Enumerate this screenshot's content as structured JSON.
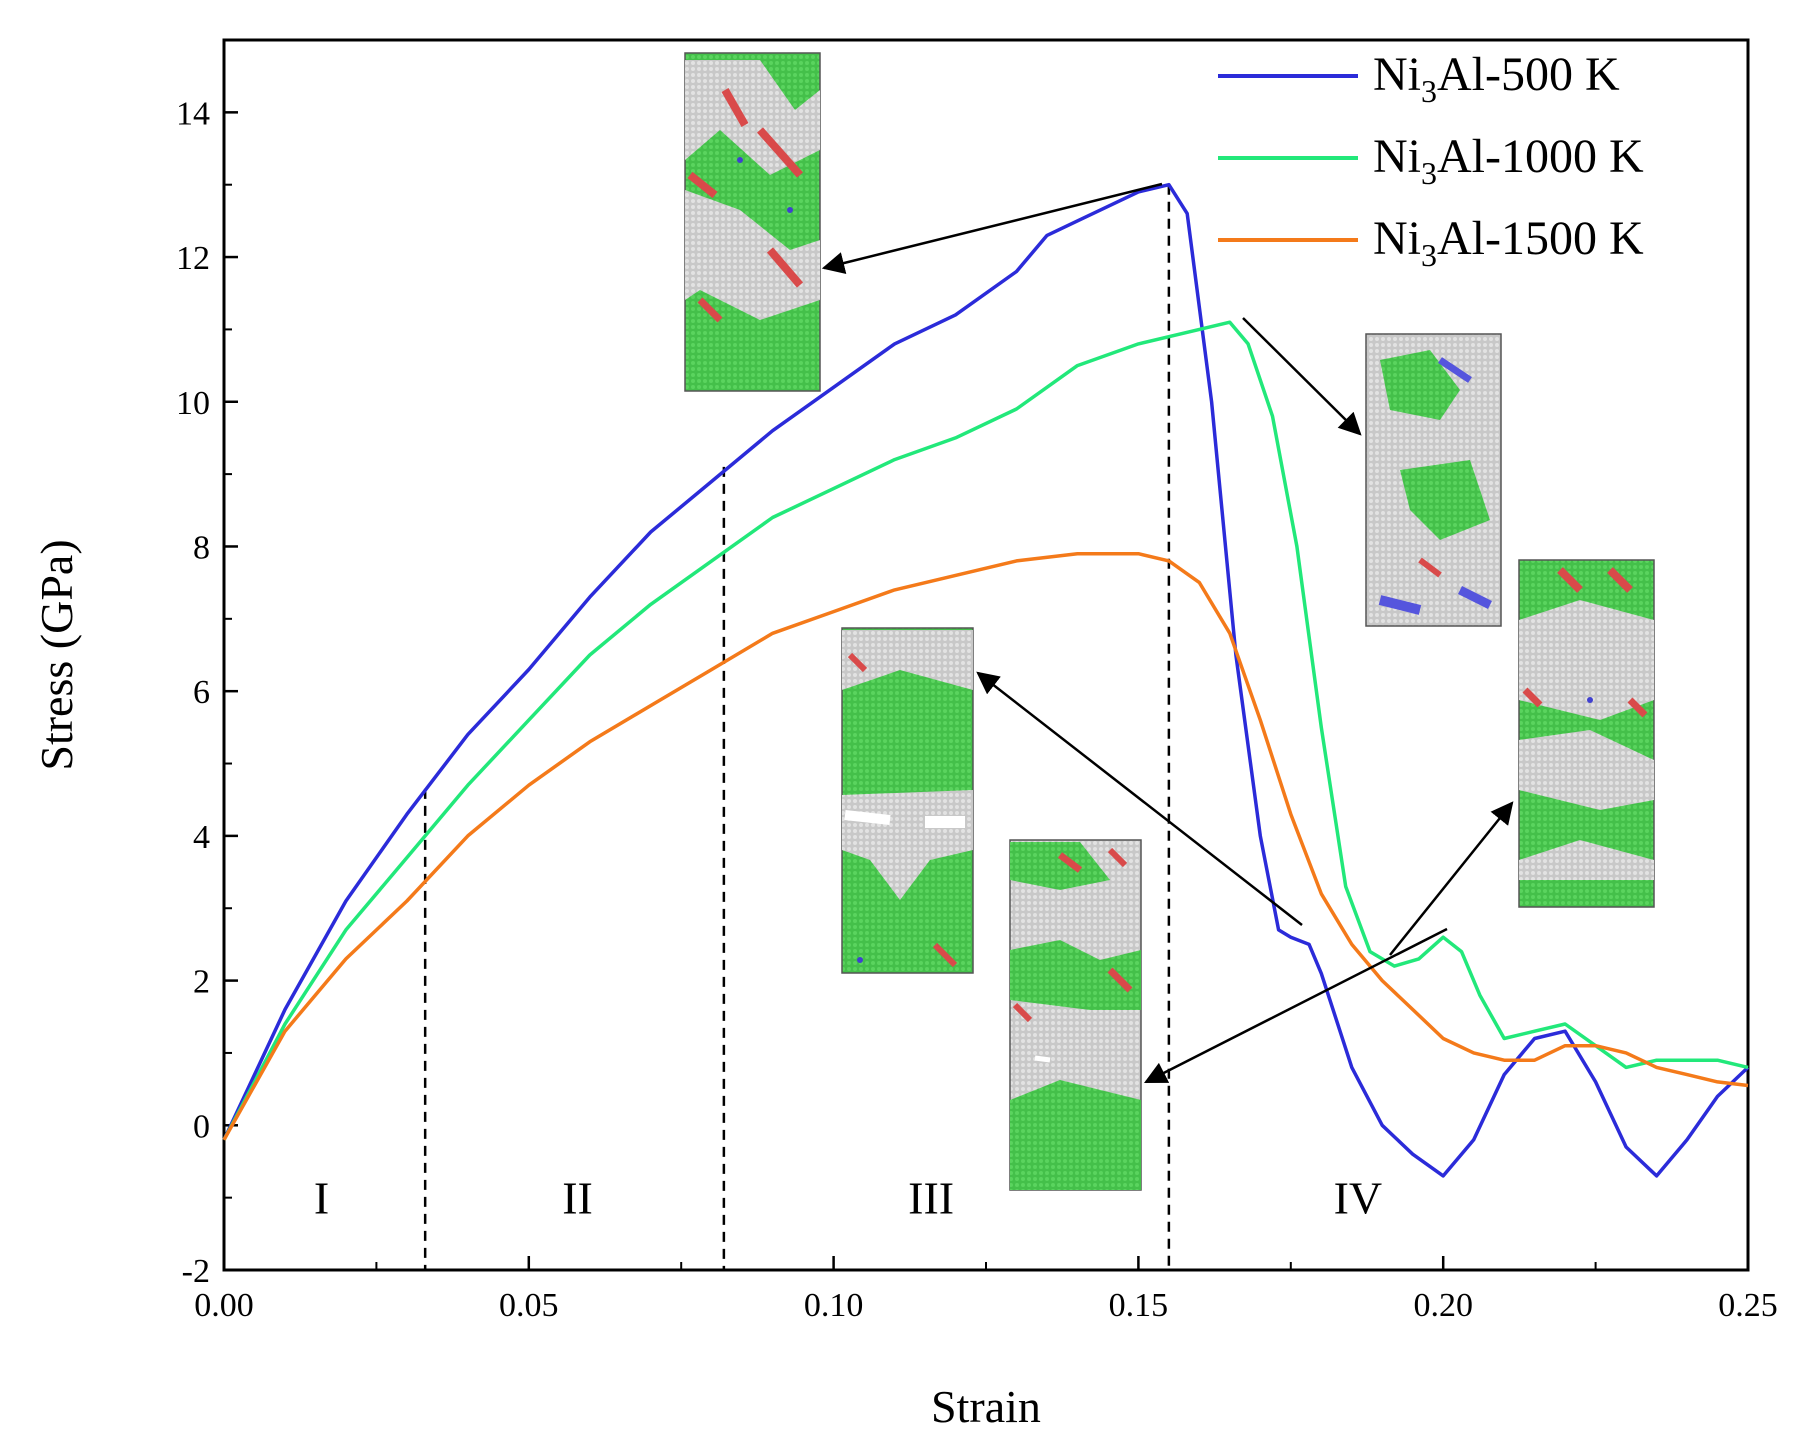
{
  "chart_data": {
    "type": "line",
    "title": "",
    "xlabel": "Strain",
    "ylabel": "Stress (GPa)",
    "xlim": [
      0.0,
      0.25
    ],
    "ylim": [
      -2,
      15
    ],
    "xticks": [
      0.0,
      0.05,
      0.1,
      0.15,
      0.2,
      0.25
    ],
    "xtick_labels": [
      "0.00",
      "0.05",
      "0.10",
      "0.15",
      "0.20",
      "0.25"
    ],
    "yticks": [
      -2,
      0,
      2,
      4,
      6,
      8,
      10,
      12,
      14
    ],
    "ytick_labels": [
      "-2",
      "0",
      "2",
      "4",
      "6",
      "8",
      "10",
      "12",
      "14"
    ],
    "grid": false,
    "legend_position": "top-right",
    "series": [
      {
        "name": "Ni3Al-500 K",
        "label_main": "Ni",
        "label_sub": "3",
        "label_rest": "Al-500 K",
        "color": "#2b2bd9",
        "x": [
          0.0,
          0.01,
          0.02,
          0.03,
          0.04,
          0.05,
          0.06,
          0.07,
          0.08,
          0.09,
          0.1,
          0.11,
          0.12,
          0.13,
          0.135,
          0.14,
          0.145,
          0.15,
          0.155,
          0.158,
          0.162,
          0.166,
          0.17,
          0.173,
          0.175,
          0.178,
          0.18,
          0.185,
          0.19,
          0.195,
          0.2,
          0.205,
          0.21,
          0.215,
          0.22,
          0.225,
          0.23,
          0.235,
          0.24,
          0.245,
          0.25
        ],
        "y": [
          -0.2,
          1.6,
          3.1,
          4.3,
          5.4,
          6.3,
          7.3,
          8.2,
          8.9,
          9.6,
          10.2,
          10.8,
          11.2,
          11.8,
          12.3,
          12.5,
          12.7,
          12.9,
          13.0,
          12.6,
          10.0,
          6.5,
          4.0,
          2.7,
          2.6,
          2.5,
          2.1,
          0.8,
          0.0,
          -0.4,
          -0.7,
          -0.2,
          0.7,
          1.2,
          1.3,
          0.6,
          -0.3,
          -0.7,
          -0.2,
          0.4,
          0.8
        ]
      },
      {
        "name": "Ni3Al-1000 K",
        "label_main": "Ni",
        "label_sub": "3",
        "label_rest": "Al-1000 K",
        "color": "#22e87a",
        "x": [
          0.0,
          0.01,
          0.02,
          0.03,
          0.04,
          0.05,
          0.06,
          0.07,
          0.08,
          0.09,
          0.1,
          0.11,
          0.12,
          0.13,
          0.14,
          0.15,
          0.16,
          0.165,
          0.168,
          0.172,
          0.176,
          0.18,
          0.184,
          0.188,
          0.192,
          0.196,
          0.2,
          0.203,
          0.206,
          0.21,
          0.215,
          0.22,
          0.225,
          0.23,
          0.235,
          0.24,
          0.245,
          0.25
        ],
        "y": [
          -0.2,
          1.4,
          2.7,
          3.7,
          4.7,
          5.6,
          6.5,
          7.2,
          7.8,
          8.4,
          8.8,
          9.2,
          9.5,
          9.9,
          10.5,
          10.8,
          11.0,
          11.1,
          10.8,
          9.8,
          8.0,
          5.5,
          3.3,
          2.4,
          2.2,
          2.3,
          2.6,
          2.4,
          1.8,
          1.2,
          1.3,
          1.4,
          1.1,
          0.8,
          0.9,
          0.9,
          0.9,
          0.8
        ]
      },
      {
        "name": "Ni3Al-1500 K",
        "label_main": "Ni",
        "label_sub": "3",
        "label_rest": "Al-1500 K",
        "color": "#f47a1a",
        "x": [
          0.0,
          0.01,
          0.02,
          0.03,
          0.04,
          0.05,
          0.06,
          0.07,
          0.08,
          0.09,
          0.1,
          0.11,
          0.12,
          0.13,
          0.14,
          0.15,
          0.155,
          0.16,
          0.165,
          0.17,
          0.175,
          0.18,
          0.185,
          0.19,
          0.195,
          0.2,
          0.205,
          0.21,
          0.215,
          0.22,
          0.225,
          0.23,
          0.235,
          0.24,
          0.245,
          0.25
        ],
        "y": [
          -0.2,
          1.3,
          2.3,
          3.1,
          4.0,
          4.7,
          5.3,
          5.8,
          6.3,
          6.8,
          7.1,
          7.4,
          7.6,
          7.8,
          7.9,
          7.9,
          7.8,
          7.5,
          6.8,
          5.6,
          4.3,
          3.2,
          2.5,
          2.0,
          1.6,
          1.2,
          1.0,
          0.9,
          0.9,
          1.1,
          1.1,
          1.0,
          0.8,
          0.7,
          0.6,
          0.55
        ]
      }
    ],
    "stage_boundaries": [
      0.033,
      0.082,
      0.155
    ],
    "regions": [
      {
        "label": "I",
        "x": 0.016
      },
      {
        "label": "II",
        "x": 0.058
      },
      {
        "label": "III",
        "x": 0.116
      },
      {
        "label": "IV",
        "x": 0.186
      }
    ],
    "snapshots": [
      {
        "name": "snapshot-500k-peak",
        "pointer_from": {
          "x": 0.154,
          "y": 13.0
        },
        "pointer_to_side": "right"
      },
      {
        "name": "snapshot-1000k-peak",
        "pointer_from": {
          "x": 0.167,
          "y": 11.1
        },
        "pointer_to_side": "left"
      },
      {
        "name": "snapshot-500k-failure",
        "pointer_from": {
          "x": 0.179,
          "y": 2.55
        },
        "pointer_to_side": "right"
      },
      {
        "name": "snapshot-1000k-failure",
        "pointer_from": {
          "x": 0.201,
          "y": 2.6
        },
        "pointer_to_side": "left"
      },
      {
        "name": "snapshot-1500k-failure",
        "pointer_from": {
          "x": 0.201,
          "y": 2.6
        },
        "pointer_to_side": "right"
      }
    ]
  }
}
